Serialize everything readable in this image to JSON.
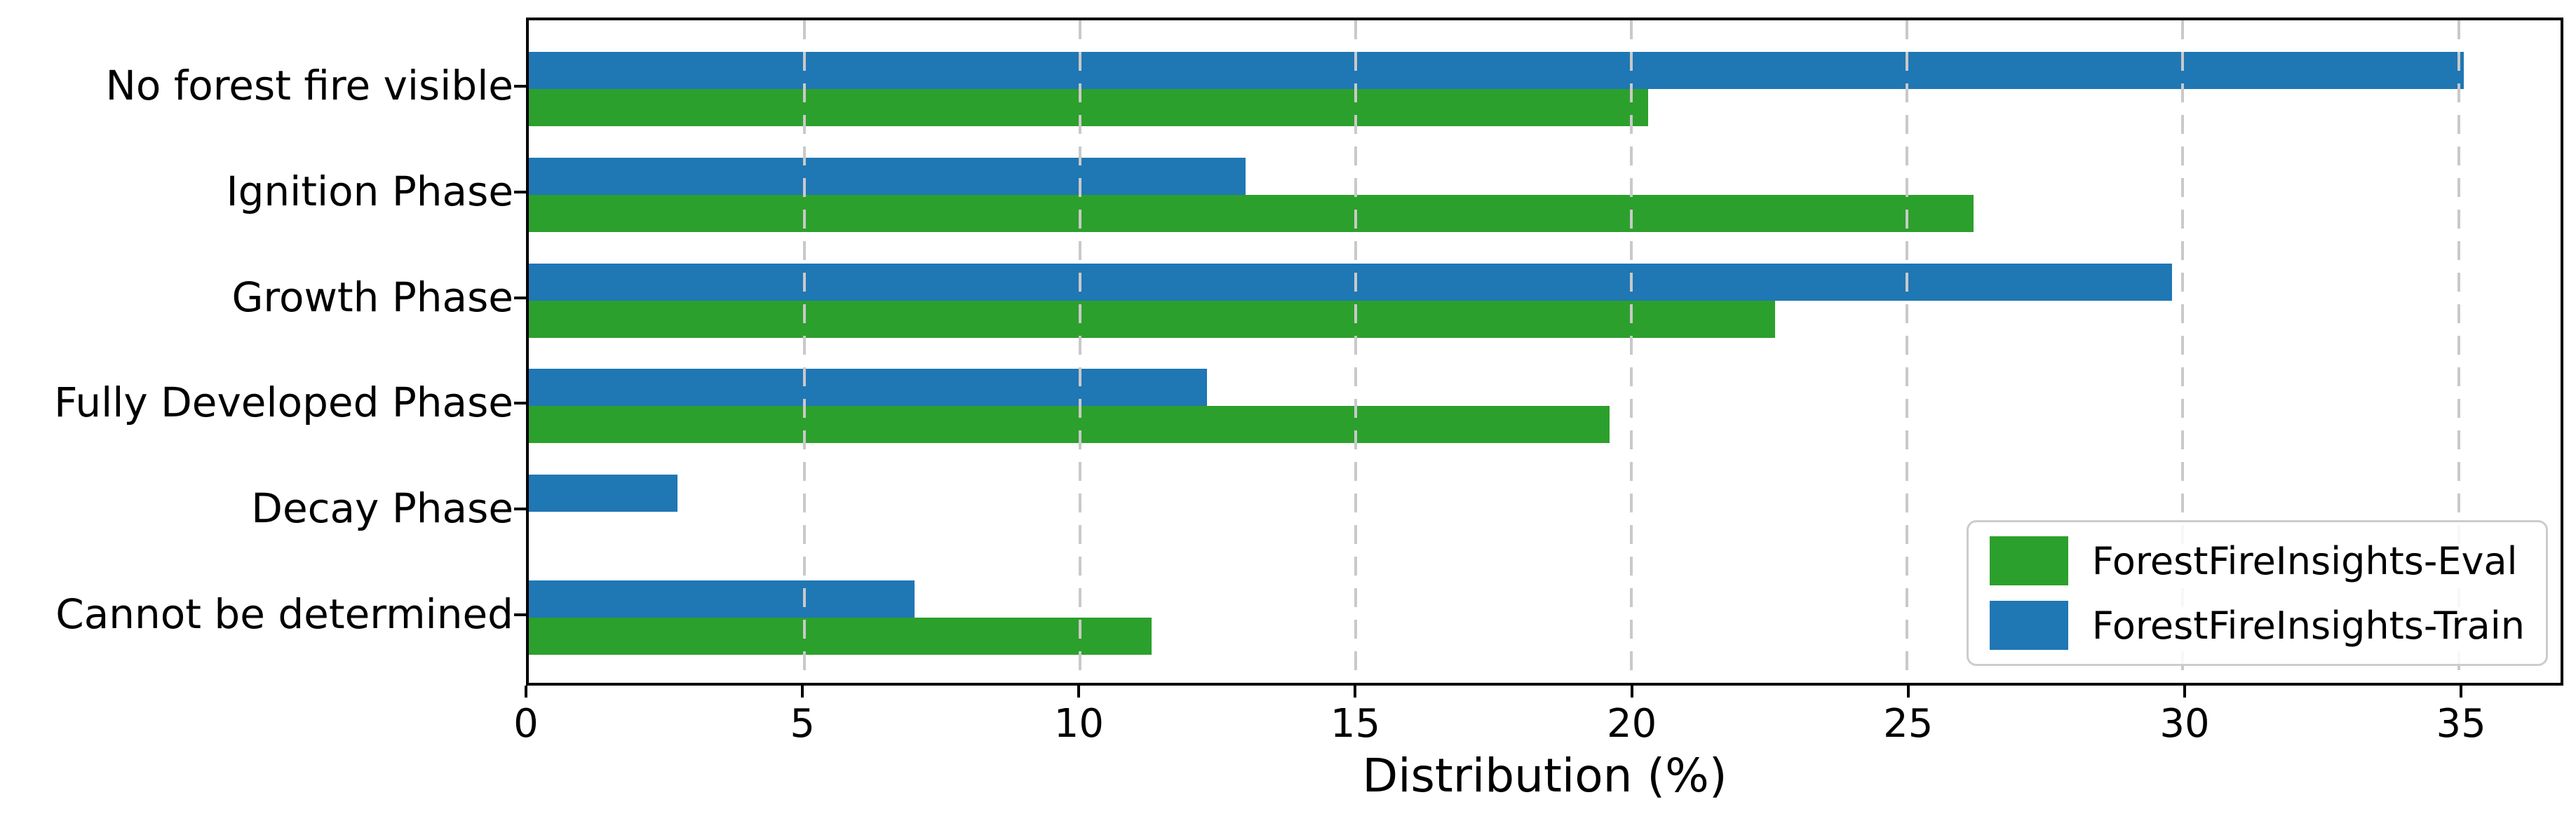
{
  "chart_data": {
    "type": "bar",
    "orientation": "horizontal",
    "title": "",
    "xlabel": "Distribution (%)",
    "ylabel": "",
    "categories": [
      "No forest fire visible",
      "Ignition Phase",
      "Growth Phase",
      "Fully Developed Phase",
      "Decay Phase",
      "Cannot be determined"
    ],
    "series": [
      {
        "name": "ForestFireInsights-Eval",
        "color": "#2ca02c",
        "values": [
          20.3,
          26.2,
          22.6,
          19.6,
          0,
          11.3
        ]
      },
      {
        "name": "ForestFireInsights-Train",
        "color": "#1f77b4",
        "values": [
          35.1,
          13.0,
          29.8,
          12.3,
          2.7,
          7.0
        ]
      }
    ],
    "bar_order_top_to_bottom": [
      "ForestFireInsights-Train",
      "ForestFireInsights-Eval"
    ],
    "xticks": [
      0,
      5,
      10,
      15,
      20,
      25,
      30,
      35
    ],
    "xlim": [
      0,
      36.85
    ],
    "grid": "vertical dashed",
    "grid_color": "#c9c9c9",
    "legend_position": "lower right",
    "axis_color": "#000000"
  }
}
